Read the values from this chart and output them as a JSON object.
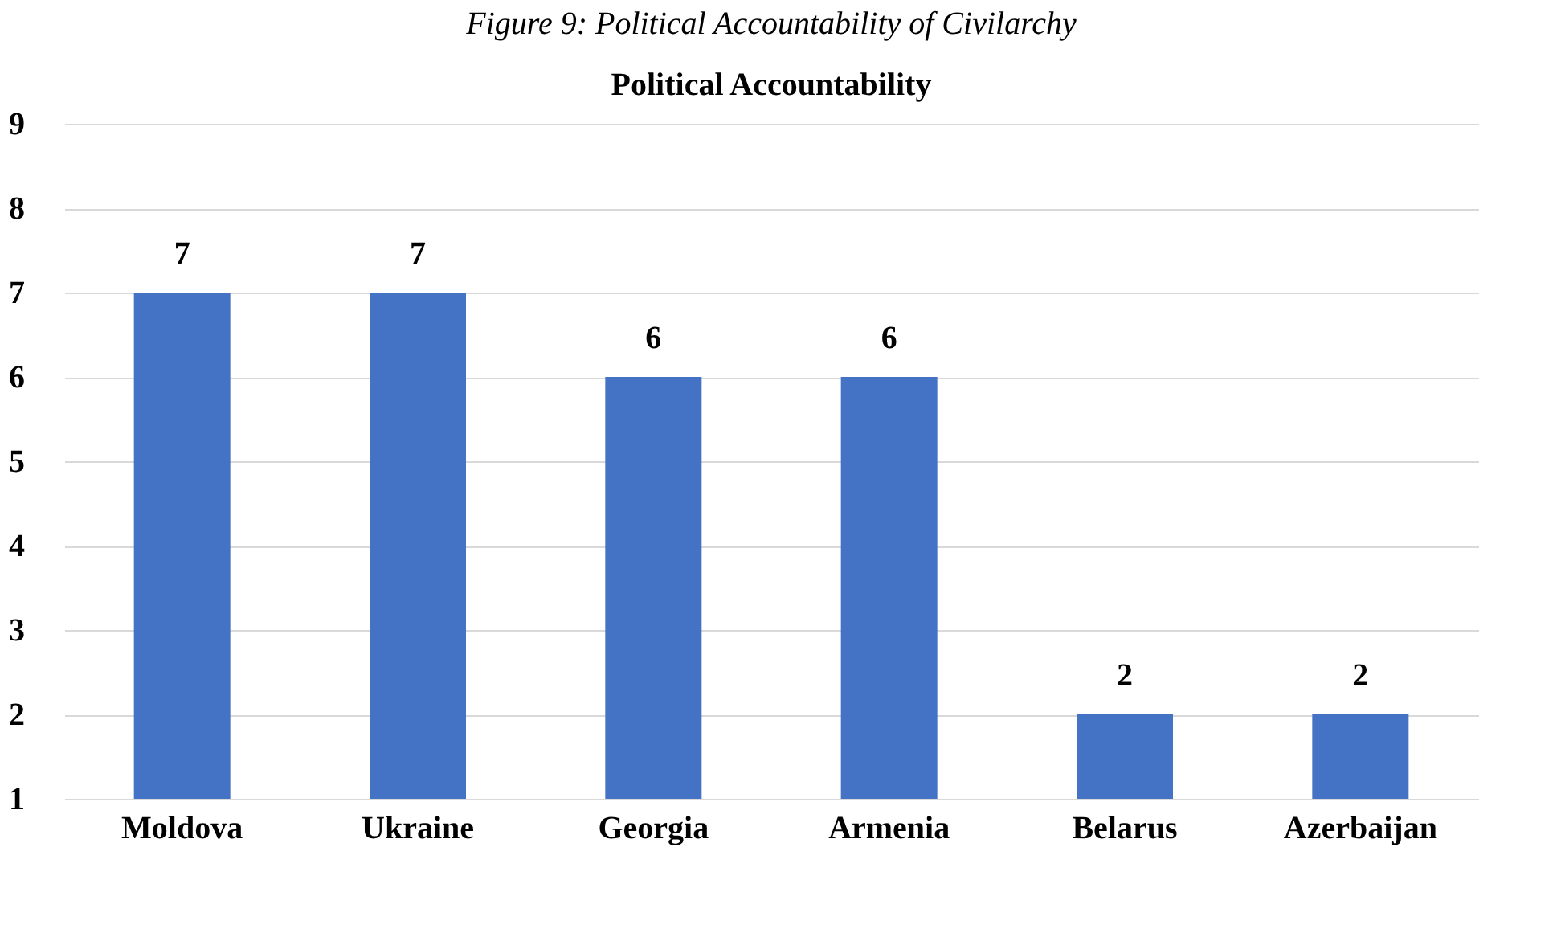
{
  "chart_data": {
    "type": "bar",
    "title": "Political Accountability",
    "annotations": [
      "Figure 9: Political Accountability of Civilarchy"
    ],
    "categories": [
      "Moldova",
      "Ukraine",
      "Georgia",
      "Armenia",
      "Belarus",
      "Azerbaijan"
    ],
    "values": [
      7,
      7,
      6,
      6,
      2,
      2
    ],
    "color": "#4472c4",
    "ylim": [
      1,
      9
    ],
    "yticks": [
      1,
      2,
      3,
      4,
      5,
      6,
      7,
      8,
      9
    ],
    "grid": "y",
    "data_labels": true
  }
}
